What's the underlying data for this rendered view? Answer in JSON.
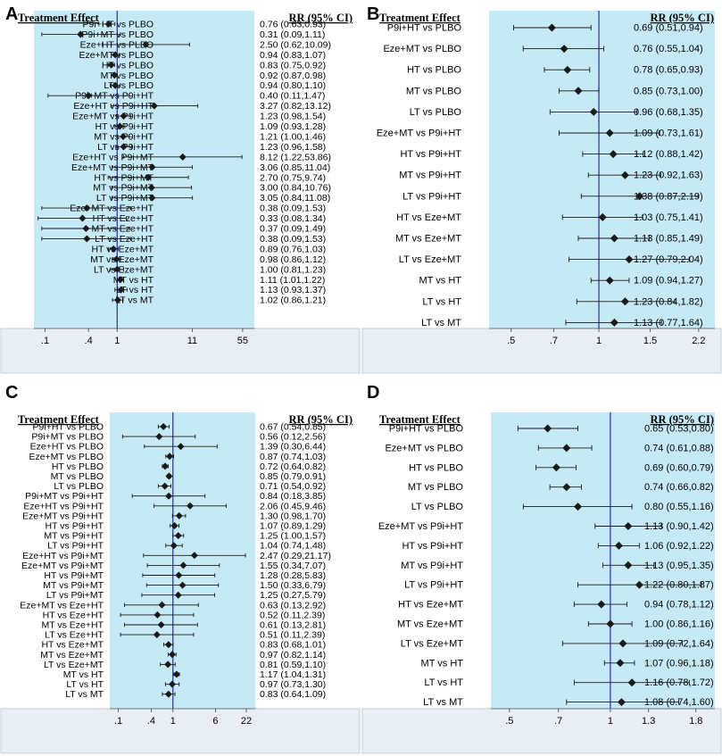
{
  "colors": {
    "panel_fill": "#c5e9f5",
    "axis_bar_fill": "#e8eef4",
    "null_line": "#2a2ab8",
    "marker": "#1a1a1a"
  },
  "chart_data": [
    {
      "panel_label": "A",
      "type": "forest",
      "scale": "log",
      "header_left": "Treatment Effect",
      "header_right": "RR (95% CI)",
      "xlim": [
        0.07,
        80
      ],
      "ticks": [
        0.1,
        0.4,
        1,
        11,
        55
      ],
      "tick_labels": [
        ".1",
        ".4",
        "1",
        "11",
        "55"
      ],
      "null_value": 1,
      "rows": [
        {
          "label": "P9i+HT vs PLBO",
          "rr": 0.76,
          "lo": 0.63,
          "hi": 0.93,
          "ci_text": "0.76 (0.63,0.93)"
        },
        {
          "label": "P9i+MT vs PLBO",
          "rr": 0.31,
          "lo": 0.09,
          "hi": 1.11,
          "ci_text": "0.31 (0.09,1.11)"
        },
        {
          "label": "Eze+HT vs PLBO",
          "rr": 2.5,
          "lo": 0.62,
          "hi": 10.09,
          "ci_text": "2.50 (0.62,10.09)"
        },
        {
          "label": "Eze+MT vs PLBO",
          "rr": 0.94,
          "lo": 0.83,
          "hi": 1.07,
          "ci_text": "0.94 (0.83,1.07)"
        },
        {
          "label": "HT vs PLBO",
          "rr": 0.83,
          "lo": 0.75,
          "hi": 0.92,
          "ci_text": "0.83 (0.75,0.92)"
        },
        {
          "label": "MT vs PLBO",
          "rr": 0.92,
          "lo": 0.87,
          "hi": 0.98,
          "ci_text": "0.92 (0.87,0.98)"
        },
        {
          "label": "LT vs PLBO",
          "rr": 0.94,
          "lo": 0.8,
          "hi": 1.1,
          "ci_text": "0.94 (0.80,1.10)"
        },
        {
          "label": "P9i+MT vs P9i+HT",
          "rr": 0.4,
          "lo": 0.11,
          "hi": 1.47,
          "ci_text": "0.40 (0.11,1.47)"
        },
        {
          "label": "Eze+HT vs P9i+HT",
          "rr": 3.27,
          "lo": 0.82,
          "hi": 13.12,
          "ci_text": "3.27 (0.82,13.12)"
        },
        {
          "label": "Eze+MT vs P9i+HT",
          "rr": 1.23,
          "lo": 0.98,
          "hi": 1.54,
          "ci_text": "1.23 (0.98,1.54)"
        },
        {
          "label": "HT vs P9i+HT",
          "rr": 1.09,
          "lo": 0.93,
          "hi": 1.28,
          "ci_text": "1.09 (0.93,1.28)"
        },
        {
          "label": "MT vs P9i+HT",
          "rr": 1.21,
          "lo": 1.0,
          "hi": 1.46,
          "ci_text": "1.21 (1.00,1.46)"
        },
        {
          "label": "LT vs P9i+HT",
          "rr": 1.23,
          "lo": 0.96,
          "hi": 1.58,
          "ci_text": "1.23 (0.96,1.58)"
        },
        {
          "label": "Eze+HT vs P9i+MT",
          "rr": 8.12,
          "lo": 1.22,
          "hi": 53.86,
          "ci_text": "8.12 (1.22,53.86)"
        },
        {
          "label": "Eze+MT vs P9i+MT",
          "rr": 3.06,
          "lo": 0.85,
          "hi": 11.04,
          "ci_text": "3.06 (0.85,11.04)"
        },
        {
          "label": "HT vs P9i+MT",
          "rr": 2.7,
          "lo": 0.75,
          "hi": 9.74,
          "ci_text": "2.70 (0.75,9.74)"
        },
        {
          "label": "MT vs P9i+MT",
          "rr": 3.0,
          "lo": 0.84,
          "hi": 10.76,
          "ci_text": "3.00 (0.84,10.76)"
        },
        {
          "label": "LT vs P9i+MT",
          "rr": 3.05,
          "lo": 0.84,
          "hi": 11.08,
          "ci_text": "3.05 (0.84,11.08)"
        },
        {
          "label": "Eze+MT vs Eze+HT",
          "rr": 0.38,
          "lo": 0.09,
          "hi": 1.53,
          "ci_text": "0.38 (0.09,1.53)"
        },
        {
          "label": "HT vs Eze+HT",
          "rr": 0.33,
          "lo": 0.08,
          "hi": 1.34,
          "ci_text": "0.33 (0.08,1.34)"
        },
        {
          "label": "MT vs Eze+HT",
          "rr": 0.37,
          "lo": 0.09,
          "hi": 1.49,
          "ci_text": "0.37 (0.09,1.49)"
        },
        {
          "label": "LT vs Eze+HT",
          "rr": 0.38,
          "lo": 0.09,
          "hi": 1.53,
          "ci_text": "0.38 (0.09,1.53)"
        },
        {
          "label": "HT vs Eze+MT",
          "rr": 0.89,
          "lo": 0.76,
          "hi": 1.03,
          "ci_text": "0.89 (0.76,1.03)"
        },
        {
          "label": "MT vs Eze+MT",
          "rr": 0.98,
          "lo": 0.86,
          "hi": 1.12,
          "ci_text": "0.98 (0.86,1.12)"
        },
        {
          "label": "LT vs Eze+MT",
          "rr": 1.0,
          "lo": 0.81,
          "hi": 1.23,
          "ci_text": "1.00 (0.81,1.23)"
        },
        {
          "label": "MT vs HT",
          "rr": 1.11,
          "lo": 1.01,
          "hi": 1.22,
          "ci_text": "1.11 (1.01,1.22)"
        },
        {
          "label": "LT vs HT",
          "rr": 1.13,
          "lo": 0.93,
          "hi": 1.37,
          "ci_text": "1.13 (0.93,1.37)"
        },
        {
          "label": "LT vs MT",
          "rr": 1.02,
          "lo": 0.86,
          "hi": 1.21,
          "ci_text": "1.02 (0.86,1.21)"
        }
      ]
    },
    {
      "panel_label": "B",
      "type": "forest",
      "scale": "log",
      "header_left": "Treatment Effect",
      "header_right": "RR (95% CI)",
      "xlim": [
        0.42,
        2.5
      ],
      "ticks": [
        0.5,
        0.7,
        1,
        1.5,
        2.2
      ],
      "tick_labels": [
        ".5",
        ".7",
        "1",
        "1.5",
        "2.2"
      ],
      "null_value": 1,
      "rows": [
        {
          "label": "P9i+HT vs PLBO",
          "rr": 0.69,
          "lo": 0.51,
          "hi": 0.94,
          "ci_text": "0.69 (0.51,0.94)"
        },
        {
          "label": "Eze+MT vs PLBO",
          "rr": 0.76,
          "lo": 0.55,
          "hi": 1.04,
          "ci_text": "0.76 (0.55,1.04)"
        },
        {
          "label": "HT vs PLBO",
          "rr": 0.78,
          "lo": 0.65,
          "hi": 0.93,
          "ci_text": "0.78 (0.65,0.93)"
        },
        {
          "label": "MT vs PLBO",
          "rr": 0.85,
          "lo": 0.73,
          "hi": 1.0,
          "ci_text": "0.85 (0.73,1.00)"
        },
        {
          "label": "LT vs PLBO",
          "rr": 0.96,
          "lo": 0.68,
          "hi": 1.35,
          "ci_text": "0.96 (0.68,1.35)"
        },
        {
          "label": "Eze+MT vs P9i+HT",
          "rr": 1.09,
          "lo": 0.73,
          "hi": 1.61,
          "ci_text": "1.09 (0.73,1.61)"
        },
        {
          "label": "HT vs P9i+HT",
          "rr": 1.12,
          "lo": 0.88,
          "hi": 1.42,
          "ci_text": "1.12 (0.88,1.42)"
        },
        {
          "label": "MT vs P9i+HT",
          "rr": 1.23,
          "lo": 0.92,
          "hi": 1.63,
          "ci_text": "1.23 (0.92,1.63)"
        },
        {
          "label": "LT vs P9i+HT",
          "rr": 1.38,
          "lo": 0.87,
          "hi": 2.19,
          "ci_text": "1.38 (0.87,2.19)"
        },
        {
          "label": "HT vs Eze+MT",
          "rr": 1.03,
          "lo": 0.75,
          "hi": 1.41,
          "ci_text": "1.03 (0.75,1.41)"
        },
        {
          "label": "MT vs Eze+MT",
          "rr": 1.13,
          "lo": 0.85,
          "hi": 1.49,
          "ci_text": "1.13 (0.85,1.49)"
        },
        {
          "label": "LT vs Eze+MT",
          "rr": 1.27,
          "lo": 0.79,
          "hi": 2.04,
          "ci_text": "1.27 (0.79,2.04)"
        },
        {
          "label": "MT vs HT",
          "rr": 1.09,
          "lo": 0.94,
          "hi": 1.27,
          "ci_text": "1.09 (0.94,1.27)"
        },
        {
          "label": "LT vs HT",
          "rr": 1.23,
          "lo": 0.84,
          "hi": 1.82,
          "ci_text": "1.23 (0.84,1.82)"
        },
        {
          "label": "LT vs MT",
          "rr": 1.13,
          "lo": 0.77,
          "hi": 1.64,
          "ci_text": "1.13 (0.77,1.64)"
        }
      ]
    },
    {
      "panel_label": "C",
      "type": "forest",
      "scale": "log",
      "header_left": "Treatment Effect",
      "header_right": "RR (95% CI)",
      "xlim": [
        0.07,
        32
      ],
      "ticks": [
        0.1,
        0.4,
        1,
        6,
        22
      ],
      "tick_labels": [
        ".1",
        ".4",
        "1",
        "6",
        "22"
      ],
      "null_value": 1,
      "rows": [
        {
          "label": "P9i+HT vs PLBO",
          "rr": 0.67,
          "lo": 0.54,
          "hi": 0.85,
          "ci_text": "0.67 (0.54,0.85)"
        },
        {
          "label": "P9i+MT vs PLBO",
          "rr": 0.56,
          "lo": 0.12,
          "hi": 2.56,
          "ci_text": "0.56 (0.12,2.56)"
        },
        {
          "label": "Eze+HT vs PLBO",
          "rr": 1.39,
          "lo": 0.3,
          "hi": 6.44,
          "ci_text": "1.39 (0.30,6.44)"
        },
        {
          "label": "Eze+MT vs PLBO",
          "rr": 0.87,
          "lo": 0.74,
          "hi": 1.03,
          "ci_text": "0.87 (0.74,1.03)"
        },
        {
          "label": "HT vs PLBO",
          "rr": 0.72,
          "lo": 0.64,
          "hi": 0.82,
          "ci_text": "0.72 (0.64,0.82)"
        },
        {
          "label": "MT vs PLBO",
          "rr": 0.85,
          "lo": 0.79,
          "hi": 0.91,
          "ci_text": "0.85 (0.79,0.91)"
        },
        {
          "label": "LT vs PLBO",
          "rr": 0.71,
          "lo": 0.54,
          "hi": 0.92,
          "ci_text": "0.71 (0.54,0.92)"
        },
        {
          "label": "P9i+MT vs P9i+HT",
          "rr": 0.84,
          "lo": 0.18,
          "hi": 3.85,
          "ci_text": "0.84 (0.18,3.85)"
        },
        {
          "label": "Eze+HT vs P9i+HT",
          "rr": 2.06,
          "lo": 0.45,
          "hi": 9.46,
          "ci_text": "2.06 (0.45,9.46)"
        },
        {
          "label": "Eze+MT vs P9i+HT",
          "rr": 1.3,
          "lo": 0.98,
          "hi": 1.7,
          "ci_text": "1.30 (0.98,1.70)"
        },
        {
          "label": "HT vs P9i+HT",
          "rr": 1.07,
          "lo": 0.89,
          "hi": 1.29,
          "ci_text": "1.07 (0.89,1.29)"
        },
        {
          "label": "MT vs P9i+HT",
          "rr": 1.25,
          "lo": 1.0,
          "hi": 1.57,
          "ci_text": "1.25 (1.00,1.57)"
        },
        {
          "label": "LT vs P9i+HT",
          "rr": 1.04,
          "lo": 0.74,
          "hi": 1.48,
          "ci_text": "1.04 (0.74,1.48)"
        },
        {
          "label": "Eze+HT vs P9i+MT",
          "rr": 2.47,
          "lo": 0.29,
          "hi": 21.17,
          "ci_text": "2.47 (0.29,21.17)"
        },
        {
          "label": "Eze+MT vs P9i+MT",
          "rr": 1.55,
          "lo": 0.34,
          "hi": 7.07,
          "ci_text": "1.55 (0.34,7.07)"
        },
        {
          "label": "HT vs P9i+MT",
          "rr": 1.28,
          "lo": 0.28,
          "hi": 5.83,
          "ci_text": "1.28 (0.28,5.83)"
        },
        {
          "label": "MT vs P9i+MT",
          "rr": 1.5,
          "lo": 0.33,
          "hi": 6.79,
          "ci_text": "1.50 (0.33,6.79)"
        },
        {
          "label": "LT vs P9i+MT",
          "rr": 1.25,
          "lo": 0.27,
          "hi": 5.79,
          "ci_text": "1.25 (0.27,5.79)"
        },
        {
          "label": "Eze+MT vs Eze+HT",
          "rr": 0.63,
          "lo": 0.13,
          "hi": 2.92,
          "ci_text": "0.63 (0.13,2.92)"
        },
        {
          "label": "HT vs Eze+HT",
          "rr": 0.52,
          "lo": 0.11,
          "hi": 2.39,
          "ci_text": "0.52 (0.11,2.39)"
        },
        {
          "label": "MT vs Eze+HT",
          "rr": 0.61,
          "lo": 0.13,
          "hi": 2.81,
          "ci_text": "0.61 (0.13,2.81)"
        },
        {
          "label": "LT vs Eze+HT",
          "rr": 0.51,
          "lo": 0.11,
          "hi": 2.39,
          "ci_text": "0.51 (0.11,2.39)"
        },
        {
          "label": "HT vs Eze+MT",
          "rr": 0.83,
          "lo": 0.68,
          "hi": 1.01,
          "ci_text": "0.83 (0.68,1.01)"
        },
        {
          "label": "MT vs Eze+MT",
          "rr": 0.97,
          "lo": 0.82,
          "hi": 1.14,
          "ci_text": "0.97 (0.82,1.14)"
        },
        {
          "label": "LT vs Eze+MT",
          "rr": 0.81,
          "lo": 0.59,
          "hi": 1.1,
          "ci_text": "0.81 (0.59,1.10)"
        },
        {
          "label": "MT vs HT",
          "rr": 1.17,
          "lo": 1.04,
          "hi": 1.31,
          "ci_text": "1.17 (1.04,1.31)"
        },
        {
          "label": "LT vs HT",
          "rr": 0.97,
          "lo": 0.73,
          "hi": 1.3,
          "ci_text": "0.97 (0.73,1.30)"
        },
        {
          "label": "LT vs MT",
          "rr": 0.83,
          "lo": 0.64,
          "hi": 1.09,
          "ci_text": "0.83 (0.64,1.09)"
        }
      ]
    },
    {
      "panel_label": "D",
      "type": "forest",
      "scale": "log",
      "header_left": "Treatment Effect",
      "header_right": "RR (95% CI)",
      "xlim": [
        0.44,
        2.05
      ],
      "ticks": [
        0.5,
        0.7,
        1,
        1.3,
        1.8
      ],
      "tick_labels": [
        ".5",
        ".7",
        "1",
        "1.3",
        "1.8"
      ],
      "null_value": 1,
      "rows": [
        {
          "label": "P9i+HT vs PLBO",
          "rr": 0.65,
          "lo": 0.53,
          "hi": 0.8,
          "ci_text": "0.65 (0.53,0.80)"
        },
        {
          "label": "Eze+MT vs PLBO",
          "rr": 0.74,
          "lo": 0.61,
          "hi": 0.88,
          "ci_text": "0.74 (0.61,0.88)"
        },
        {
          "label": "HT vs PLBO",
          "rr": 0.69,
          "lo": 0.6,
          "hi": 0.79,
          "ci_text": "0.69 (0.60,0.79)"
        },
        {
          "label": "MT vs PLBO",
          "rr": 0.74,
          "lo": 0.66,
          "hi": 0.82,
          "ci_text": "0.74 (0.66,0.82)"
        },
        {
          "label": "LT vs PLBO",
          "rr": 0.8,
          "lo": 0.55,
          "hi": 1.16,
          "ci_text": "0.80 (0.55,1.16)"
        },
        {
          "label": "Eze+MT vs P9i+HT",
          "rr": 1.13,
          "lo": 0.9,
          "hi": 1.42,
          "ci_text": "1.13 (0.90,1.42)"
        },
        {
          "label": "HT vs P9i+HT",
          "rr": 1.06,
          "lo": 0.92,
          "hi": 1.22,
          "ci_text": "1.06 (0.92,1.22)"
        },
        {
          "label": "MT vs P9i+HT",
          "rr": 1.13,
          "lo": 0.95,
          "hi": 1.35,
          "ci_text": "1.13 (0.95,1.35)"
        },
        {
          "label": "LT vs P9i+HT",
          "rr": 1.22,
          "lo": 0.8,
          "hi": 1.87,
          "ci_text": "1.22 (0.80,1.87)"
        },
        {
          "label": "HT vs Eze+MT",
          "rr": 0.94,
          "lo": 0.78,
          "hi": 1.12,
          "ci_text": "0.94 (0.78,1.12)"
        },
        {
          "label": "MT vs Eze+MT",
          "rr": 1.0,
          "lo": 0.86,
          "hi": 1.16,
          "ci_text": "1.00 (0.86,1.16)"
        },
        {
          "label": "LT vs Eze+MT",
          "rr": 1.09,
          "lo": 0.72,
          "hi": 1.64,
          "ci_text": "1.09 (0.72,1.64)"
        },
        {
          "label": "MT vs HT",
          "rr": 1.07,
          "lo": 0.96,
          "hi": 1.18,
          "ci_text": "1.07 (0.96,1.18)"
        },
        {
          "label": "LT vs HT",
          "rr": 1.16,
          "lo": 0.78,
          "hi": 1.72,
          "ci_text": "1.16 (0.78,1.72)"
        },
        {
          "label": "LT vs MT",
          "rr": 1.08,
          "lo": 0.74,
          "hi": 1.6,
          "ci_text": "1.08 (0.74,1.60)"
        }
      ]
    }
  ]
}
